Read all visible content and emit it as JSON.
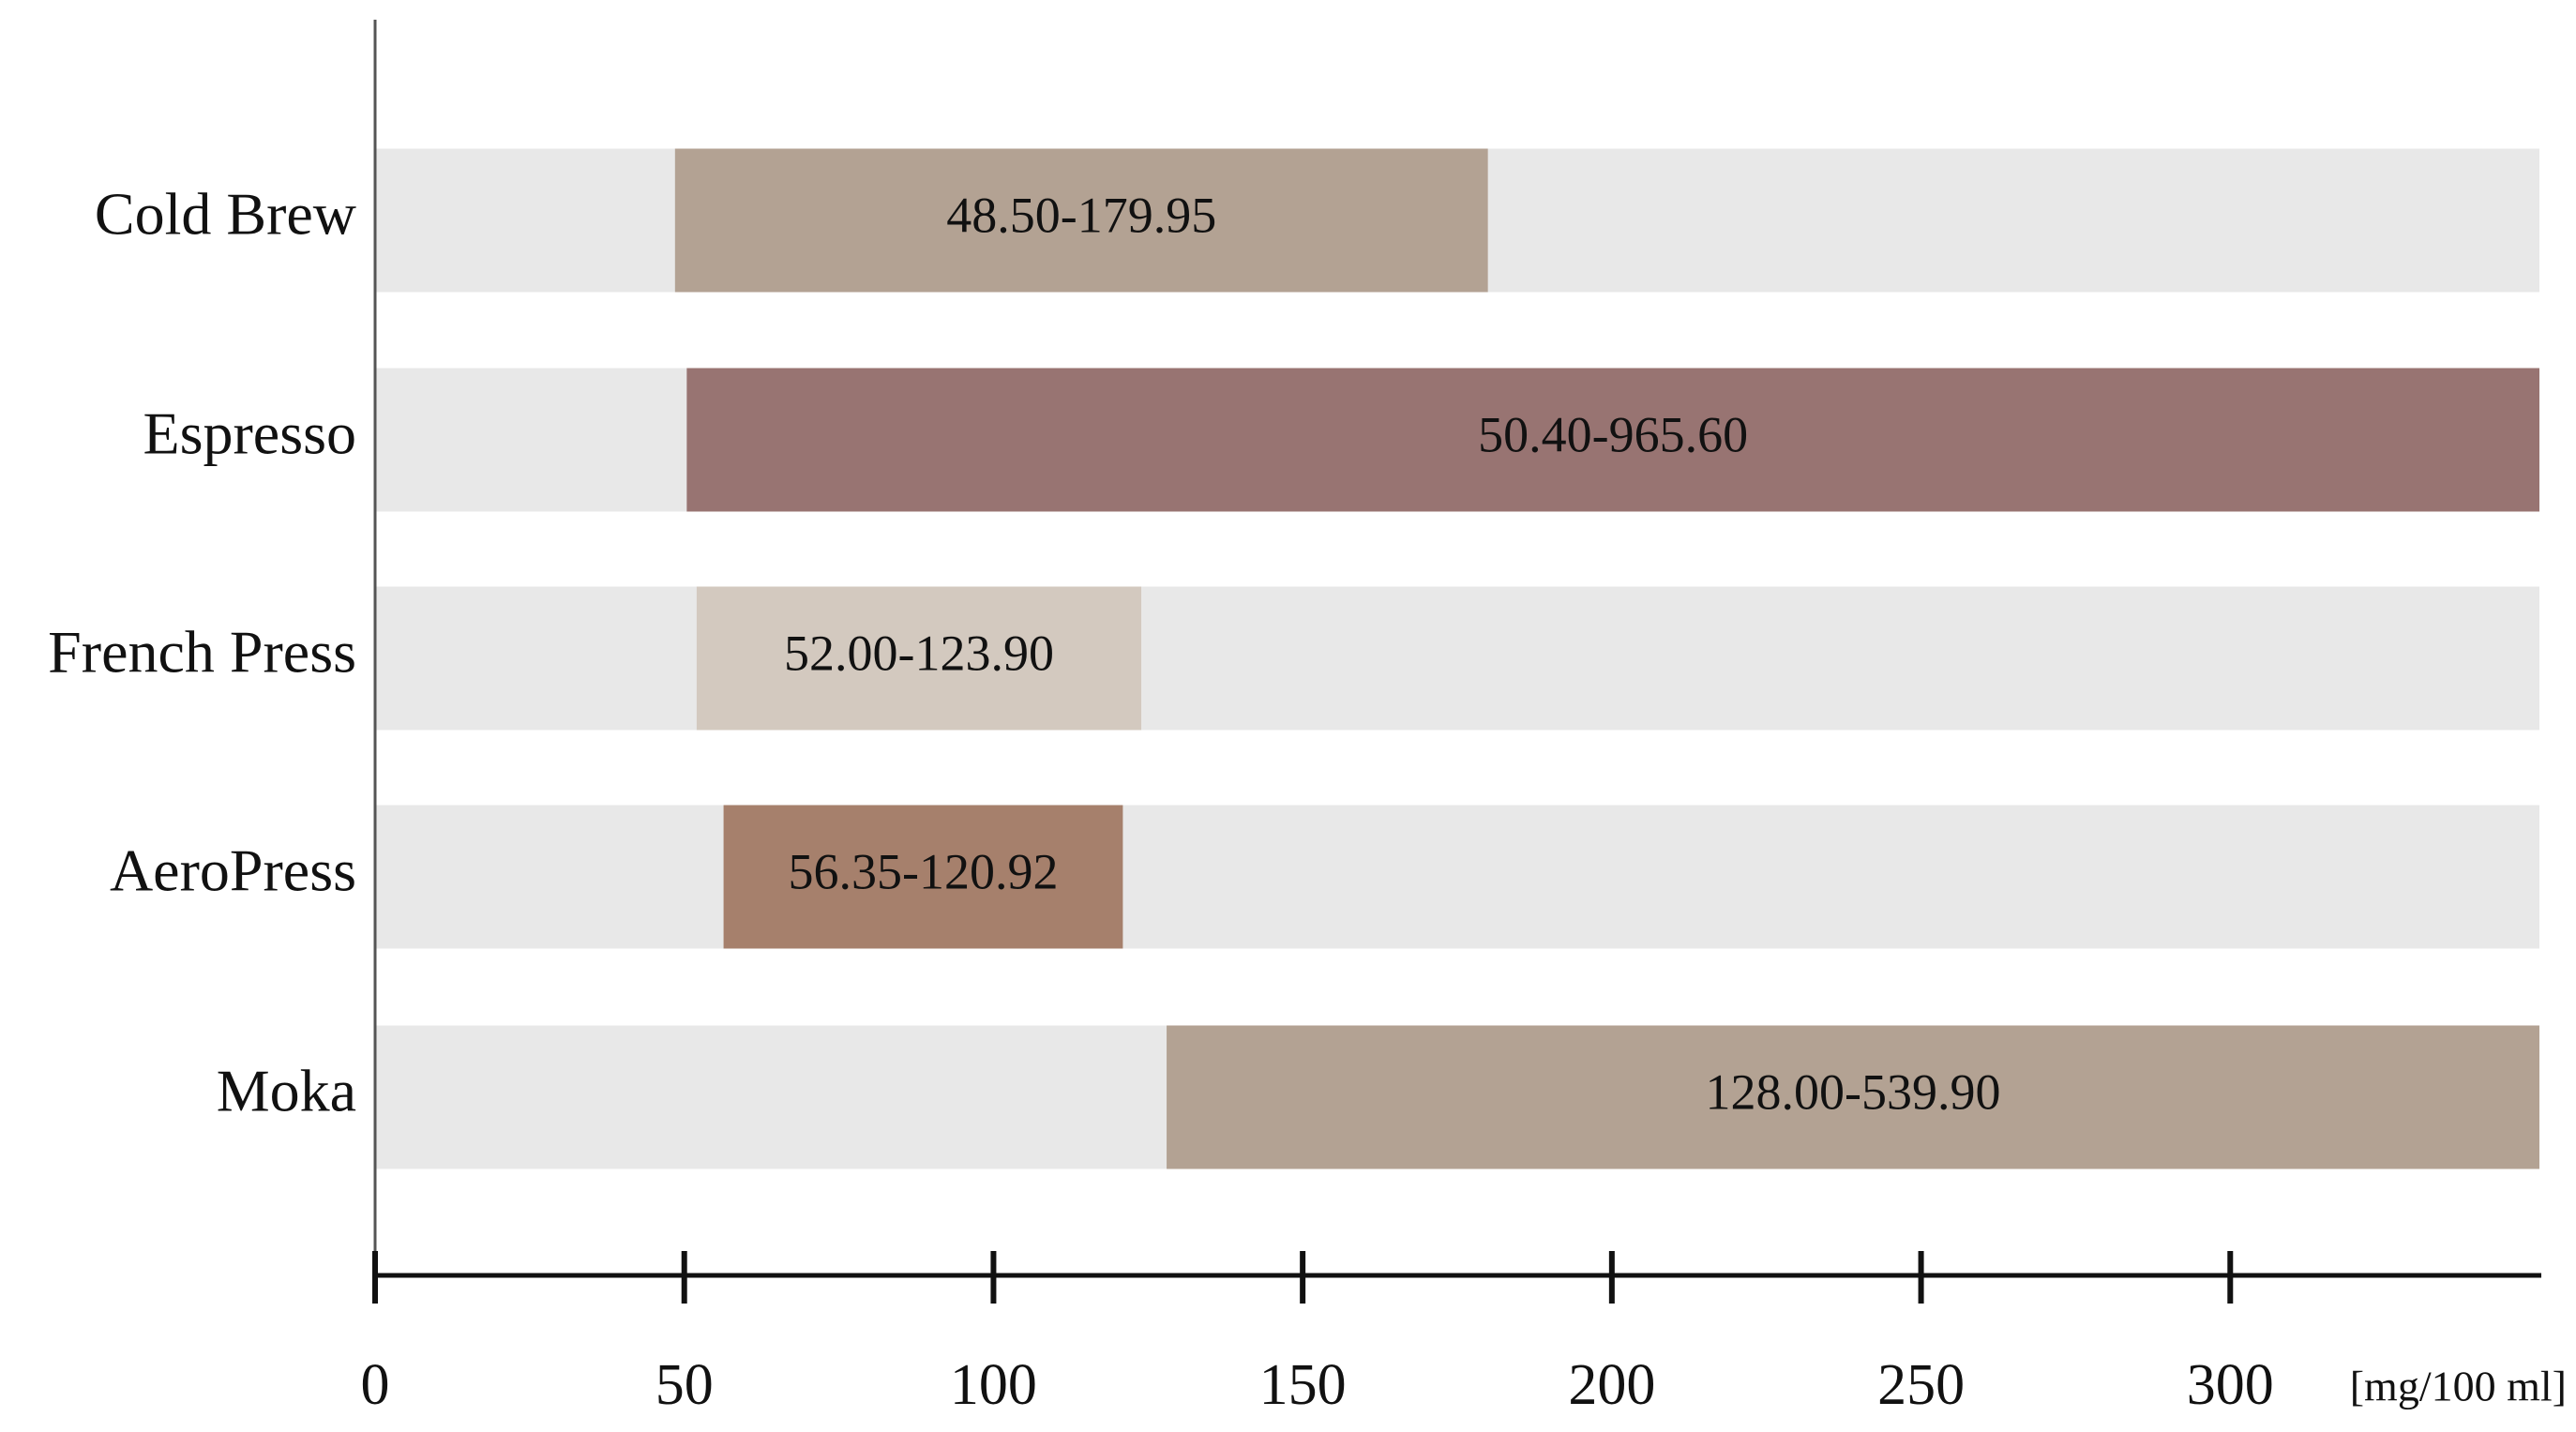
{
  "chart_data": {
    "type": "range-bar",
    "categories": [
      "Cold Brew",
      "Espresso",
      "French Press",
      "AeroPress",
      "Moka"
    ],
    "low": [
      48.5,
      50.4,
      52.0,
      56.35,
      128.0
    ],
    "high": [
      179.95,
      965.6,
      123.9,
      120.92,
      539.9
    ],
    "value_labels": [
      "48.50-179.95",
      "50.40-965.60",
      "52.00-123.90",
      "56.35-120.92",
      "128.00-539.90"
    ],
    "colors": [
      "#b3a293",
      "#987472",
      "#d3c9bf",
      "#a6806c",
      "#b3a293"
    ],
    "track_color": "#e8e8e8",
    "xlim": [
      0,
      350
    ],
    "xticks": [
      0,
      50,
      100,
      150,
      200,
      250,
      300
    ],
    "xlabel": "[mg/100 ml]"
  }
}
